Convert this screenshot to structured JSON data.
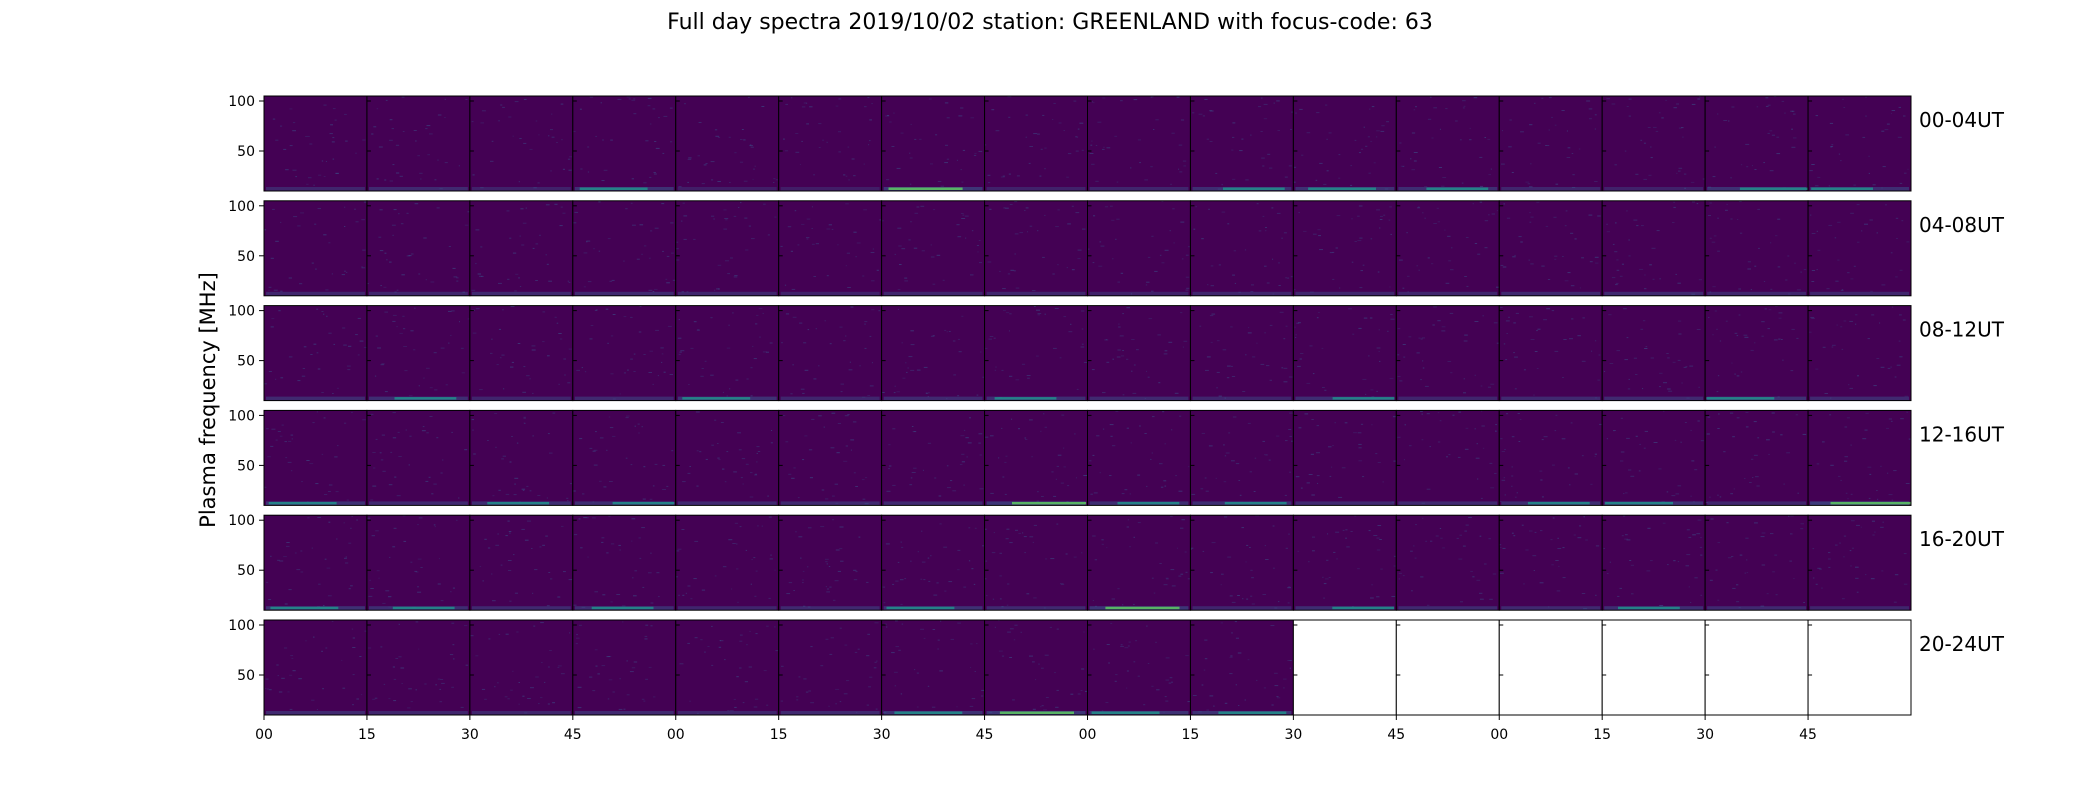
{
  "chart_data": {
    "type": "heatmap",
    "title": "Full day spectra 2019/10/02 station: GREENLAND with focus-code: 63",
    "ylabel": "Plasma frequency [MHz]",
    "xlabel": "",
    "y_ticks": [
      50,
      100
    ],
    "ylim": [
      10,
      105
    ],
    "x_ticks": [
      "00",
      "15",
      "30",
      "45",
      "00",
      "15",
      "30",
      "45",
      "00",
      "15",
      "30",
      "45",
      "00",
      "15",
      "30",
      "45"
    ],
    "panels_per_row": 16,
    "grid": false,
    "colormap": [
      "#440154",
      "#3b528b",
      "#21918c",
      "#5ec962"
    ],
    "rows": [
      {
        "label": "00-04UT",
        "filled_panels": 16,
        "baseline": [
          0.3,
          0.4,
          0.2,
          0.6,
          0.1,
          0.1,
          0.7,
          0.2,
          0.3,
          0.5,
          0.6,
          0.5,
          0.3,
          0.2,
          0.6,
          0.5
        ]
      },
      {
        "label": "04-08UT",
        "filled_panels": 16,
        "baseline": [
          0.3,
          0.3,
          0.4,
          0.4,
          0.3,
          0.2,
          0.3,
          0.3,
          0.2,
          0.3,
          0.3,
          0.3,
          0.4,
          0.4,
          0.3,
          0.3
        ]
      },
      {
        "label": "08-12UT",
        "filled_panels": 16,
        "baseline": [
          0.4,
          0.5,
          0.3,
          0.4,
          0.6,
          0.3,
          0.4,
          0.5,
          0.4,
          0.3,
          0.5,
          0.3,
          0.4,
          0.4,
          0.6,
          0.4
        ]
      },
      {
        "label": "12-16UT",
        "filled_panels": 16,
        "baseline": [
          0.6,
          0.4,
          0.5,
          0.5,
          0.4,
          0.4,
          0.4,
          0.7,
          0.5,
          0.5,
          0.4,
          0.4,
          0.5,
          0.6,
          0.3,
          0.8
        ]
      },
      {
        "label": "16-20UT",
        "filled_panels": 16,
        "baseline": [
          0.6,
          0.5,
          0.4,
          0.5,
          0.3,
          0.4,
          0.6,
          0.4,
          0.7,
          0.3,
          0.5,
          0.4,
          0.4,
          0.5,
          0.4,
          0.3
        ]
      },
      {
        "label": "20-24UT",
        "filled_panels": 10,
        "baseline": [
          0.4,
          0.3,
          0.3,
          0.4,
          0.3,
          0.4,
          0.6,
          0.7,
          0.6,
          0.6
        ]
      }
    ]
  }
}
